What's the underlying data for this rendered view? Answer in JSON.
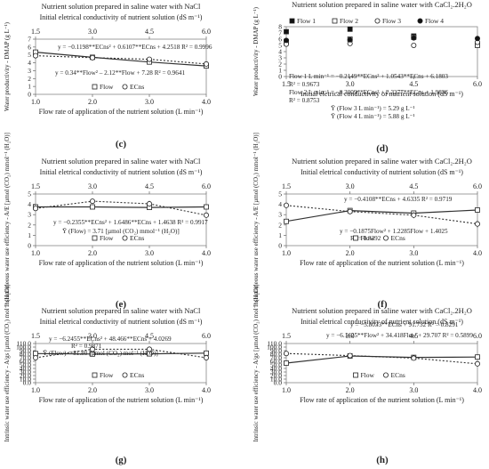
{
  "chart_data": [
    {
      "id": "c",
      "type": "scatter",
      "panel_label": "(c)",
      "title": "Nutrient solution prepared in saline water with NaCl",
      "top_axis": {
        "label": "Initial eletrical conductivity of nutrient solution (dS m⁻¹)",
        "ticks": [
          "1.5",
          "3.0",
          "4.5",
          "6.0"
        ],
        "range": [
          1.5,
          6.0
        ]
      },
      "xlabel": "Flow rate of application of the nutrient solution (L min⁻¹)",
      "ylabel": "Water productivity - DMAP (g L⁻¹)",
      "xlim": [
        1.0,
        4.0
      ],
      "ylim": [
        0,
        7
      ],
      "xticks": [
        "1.0",
        "2.0",
        "3.0",
        "4.0"
      ],
      "yticks": [
        "0",
        "1",
        "2",
        "3",
        "4",
        "5",
        "6",
        "7"
      ],
      "series": [
        {
          "name": "Flow",
          "marker": "square",
          "line": "solid",
          "x": [
            1,
            2,
            3,
            4
          ],
          "y": [
            5.35,
            4.7,
            4.1,
            3.6
          ],
          "err": [
            0.25,
            0.25,
            0.3,
            0.3
          ]
        },
        {
          "name": "ECns",
          "marker": "circle",
          "line": "dotted",
          "x": [
            1.5,
            3.0,
            4.5,
            6.0
          ],
          "y": [
            4.9,
            4.65,
            4.45,
            3.85
          ],
          "err": [
            0.25,
            0.3,
            0.25,
            0.3
          ],
          "x_axis": "top"
        }
      ],
      "legend": [
        "Flow",
        "ECns"
      ],
      "annotations": [
        "y = −0.1198**ECns² + 0.6107**ECns + 4.2518 R² = 0.9996",
        "y = 0.34**Flow² – 2.12**Flow + 7.28 R² = 0.9641"
      ]
    },
    {
      "id": "d",
      "type": "scatter",
      "panel_label": "(d)",
      "title": "Nutrient solution prepared in saline water with CaCl₂.2H₂O",
      "xlabel": "Initial eletrical conductivity of nutrient solution (dS m⁻¹)",
      "ylabel": "Water productivity - DMAP (g L⁻¹)",
      "xlim": [
        1.5,
        6.0
      ],
      "ylim": [
        0,
        8
      ],
      "xticks": [
        "1.5",
        "3.0",
        "4.5",
        "6.0"
      ],
      "yticks": [
        "0",
        "1",
        "2",
        "3",
        "4",
        "5",
        "6",
        "7",
        "8"
      ],
      "series": [
        {
          "name": "Flow 1",
          "marker": "square-filled",
          "x": [
            1.5,
            3.0,
            4.5,
            6.0
          ],
          "y": [
            7.2,
            7.6,
            6.5,
            5.2
          ]
        },
        {
          "name": "Flow 2",
          "marker": "square",
          "x": [
            1.5,
            3.0,
            4.5,
            6.0
          ],
          "y": [
            5.6,
            6.0,
            6.3,
            5.0
          ]
        },
        {
          "name": "Flow 3",
          "marker": "circle",
          "x": [
            1.5,
            3.0,
            4.5,
            6.0
          ],
          "y": [
            5.2,
            5.3,
            5.0,
            5.5
          ]
        },
        {
          "name": "Flow 4",
          "marker": "circle-filled",
          "x": [
            1.5,
            3.0,
            4.5,
            6.0
          ],
          "y": [
            5.8,
            5.9,
            6.2,
            6.1
          ]
        }
      ],
      "legend": [
        "Flow 1",
        "Flow 2",
        "Flow 3",
        "Flow 4"
      ],
      "annotations": [
        "Flow 1 L min⁻¹ = −0.2149**ECns² + 1.0543**ECns + 6.1803",
        "R² = 0.9673",
        "Flow 2 L min⁻¹ = −0.3009**ECns² + 2.3277**ECns + 1.9836",
        "R² = 0.8753",
        "Ȳ (Flow 3 L min⁻¹) = 5.29 g L⁻¹",
        "Ȳ (Flow 4 L min⁻¹) = 5.88 g L⁻¹"
      ]
    },
    {
      "id": "e",
      "type": "scatter",
      "panel_label": "(e)",
      "title": "Nutrient solution prepared in saline water with NaCl",
      "top_axis": {
        "label": "Initial eletrical conductivity of nutrient solution (dS m⁻¹)",
        "ticks": [
          "1.5",
          "3.0",
          "4.5",
          "6.0"
        ],
        "range": [
          1.5,
          6.0
        ]
      },
      "xlabel": "Flow rate of application of the nutrient solution (L min⁻¹)",
      "ylabel": "Instantaneous water use efficiency - A/E [µmol (CO₂) mmol⁻¹ (H₂O)]",
      "xlim": [
        1.0,
        4.0
      ],
      "ylim": [
        0,
        5
      ],
      "xticks": [
        "1.0",
        "2.0",
        "3.0",
        "4.0"
      ],
      "yticks": [
        "0",
        "1",
        "2",
        "3",
        "4",
        "5"
      ],
      "series": [
        {
          "name": "Flow",
          "marker": "square",
          "line": "solid",
          "x": [
            1,
            2,
            3,
            4
          ],
          "y": [
            3.75,
            3.75,
            3.7,
            3.75
          ],
          "err": [
            0.2,
            0.2,
            0.2,
            0.2
          ]
        },
        {
          "name": "ECns",
          "marker": "circle",
          "line": "dotted",
          "x": [
            1.5,
            3.0,
            4.5,
            6.0
          ],
          "y": [
            3.6,
            4.3,
            4.05,
            2.95
          ],
          "err": [
            0.2,
            0.25,
            0.3,
            0.2
          ],
          "x_axis": "top"
        }
      ],
      "legend": [
        "Flow",
        "ECns"
      ],
      "annotations": [
        "y = −0.2355**ECns² + 1.6486**ECns + 1.4638 R² = 0.9917",
        "Ȳ (Flow) = 3.71 [µmol (CO₂) mmol⁻¹ (H₂O)]"
      ]
    },
    {
      "id": "f",
      "type": "scatter",
      "panel_label": "(f)",
      "title": "Nutrient solution prepared in saline water with CaCl₂.2H₂O",
      "top_axis": {
        "label": "Initial eletrical conductivity of nutrient solution (dS m⁻¹)",
        "ticks": [
          "1.5",
          "3.0",
          "4.5",
          "6.0"
        ],
        "range": [
          1.5,
          6.0
        ]
      },
      "xlabel": "Flow rate of application of the nutrient solution (L min⁻¹)",
      "ylabel": "Instantaneous water use efficiency - A/E [µmol (CO₂) mmol⁻¹ (H₂O)]",
      "xlim": [
        1.0,
        4.0
      ],
      "ylim": [
        0,
        5
      ],
      "xticks": [
        "1.0",
        "2.0",
        "3.0",
        "4.0"
      ],
      "yticks": [
        "0",
        "1",
        "2",
        "3",
        "4",
        "5"
      ],
      "series": [
        {
          "name": "Flow",
          "marker": "square",
          "line": "solid",
          "x": [
            1,
            2,
            3,
            4
          ],
          "y": [
            2.35,
            3.4,
            3.15,
            3.45
          ],
          "err": [
            0.2,
            0.2,
            0.2,
            0.2
          ]
        },
        {
          "name": "ECns",
          "marker": "circle",
          "line": "dotted",
          "x": [
            1.5,
            3.0,
            4.5,
            6.0
          ],
          "y": [
            3.9,
            3.3,
            2.95,
            2.1
          ],
          "err": [
            0.3,
            0.25,
            0.3,
            0.35
          ],
          "x_axis": "top"
        }
      ],
      "legend": [
        "Flow",
        "ECns"
      ],
      "annotations": [
        "y = −0.4108**ECns + 4.6335 R² = 0.9719",
        "y = −0.1875Flow² + 1.2285Flow + 1.4025",
        "R² = 0.8392"
      ]
    },
    {
      "id": "g",
      "type": "scatter",
      "panel_label": "(g)",
      "title": "Nutrient solution prepared in saline water with NaCl",
      "top_axis": {
        "label": "Initial eletrical conductivity of nutrient solution (dS m⁻¹)",
        "ticks": [
          "1.5",
          "3.0",
          "4.5",
          "6.0"
        ],
        "range": [
          1.5,
          6.0
        ]
      },
      "xlabel": "Flow rate of application of the nutrient solution (L min⁻¹)",
      "ylabel": "Intrinsic water use efficiency - A/gs [µmol (CO₂) mol⁻¹ (H₂O)]",
      "xlim": [
        1.0,
        4.0
      ],
      "ylim": [
        0,
        110
      ],
      "xticks": [
        "1.0",
        "2.0",
        "3.0",
        "4.0"
      ],
      "yticks": [
        "0.0",
        "10.0",
        "20.0",
        "30.0",
        "40.0",
        "50.0",
        "60.0",
        "70.0",
        "80.0",
        "90.0",
        "100.0",
        "110.0"
      ],
      "series": [
        {
          "name": "Flow",
          "marker": "square",
          "line": "solid",
          "x": [
            1,
            2,
            3,
            4
          ],
          "y": [
            81.8,
            80.5,
            81.0,
            83.0
          ],
          "err": [
            4,
            4,
            4,
            4
          ]
        },
        {
          "name": "ECns",
          "marker": "circle",
          "line": "dotted",
          "x": [
            1.5,
            3.0,
            4.5,
            6.0
          ],
          "y": [
            70,
            94,
            94,
            70
          ],
          "err": [
            8,
            6,
            7,
            8
          ],
          "x_axis": "top"
        }
      ],
      "legend": [
        "Flow",
        "ECns"
      ],
      "annotations": [
        "y = −6.2455**ECns² + 48.466**ECns + 4.0269",
        "R² = 0.9871",
        "Ȳ (Flow) = 81.80 [µmol (CO₂) mol⁻¹ (H₂O)]"
      ]
    },
    {
      "id": "h",
      "type": "scatter",
      "panel_label": "(h)",
      "title": "Nutrient solution prepared in saline water with CaCl₂.2H₂O",
      "top_axis": {
        "label": "Initial eletrical conductivity of nutrient solution (dS m⁻¹)",
        "ticks": [
          "1.5",
          "3.0",
          "4.5",
          "6.0"
        ],
        "range": [
          1.5,
          6.0
        ]
      },
      "xlabel": "Flow rate of application of the nutrient solution (L min⁻¹)",
      "ylabel": "Intrinsic water use efficiency - A/gs [µmol (CO₂) mol⁻¹ (H₂O)]",
      "xlim": [
        1.0,
        4.0
      ],
      "ylim": [
        0,
        110
      ],
      "xticks": [
        "1.0",
        "2.0",
        "3.0",
        "4.0"
      ],
      "yticks": [
        "0.0",
        "10.0",
        "20.0",
        "30.0",
        "40.0",
        "50.0",
        "60.0",
        "70.0",
        "80.0",
        "90.0",
        "100.0",
        "110.0"
      ],
      "series": [
        {
          "name": "Flow",
          "marker": "square",
          "line": "solid",
          "x": [
            1,
            2,
            3,
            4
          ],
          "y": [
            55,
            75,
            71,
            72
          ],
          "err": [
            5,
            5,
            5,
            5
          ]
        },
        {
          "name": "ECns",
          "marker": "circle",
          "line": "dotted",
          "x": [
            1.5,
            3.0,
            4.5,
            6.0
          ],
          "y": [
            82,
            76,
            69,
            53
          ],
          "err": [
            6,
            7,
            6,
            8
          ],
          "x_axis": "top"
        }
      ],
      "legend": [
        "Flow",
        "ECns"
      ],
      "annotations": [
        "y = −5.8033**ECns + 91.732 R² = 0.8291",
        "y = −6.1425**Flow² + 34.418Flow + 29.707 R² = 0.5899"
      ]
    }
  ]
}
